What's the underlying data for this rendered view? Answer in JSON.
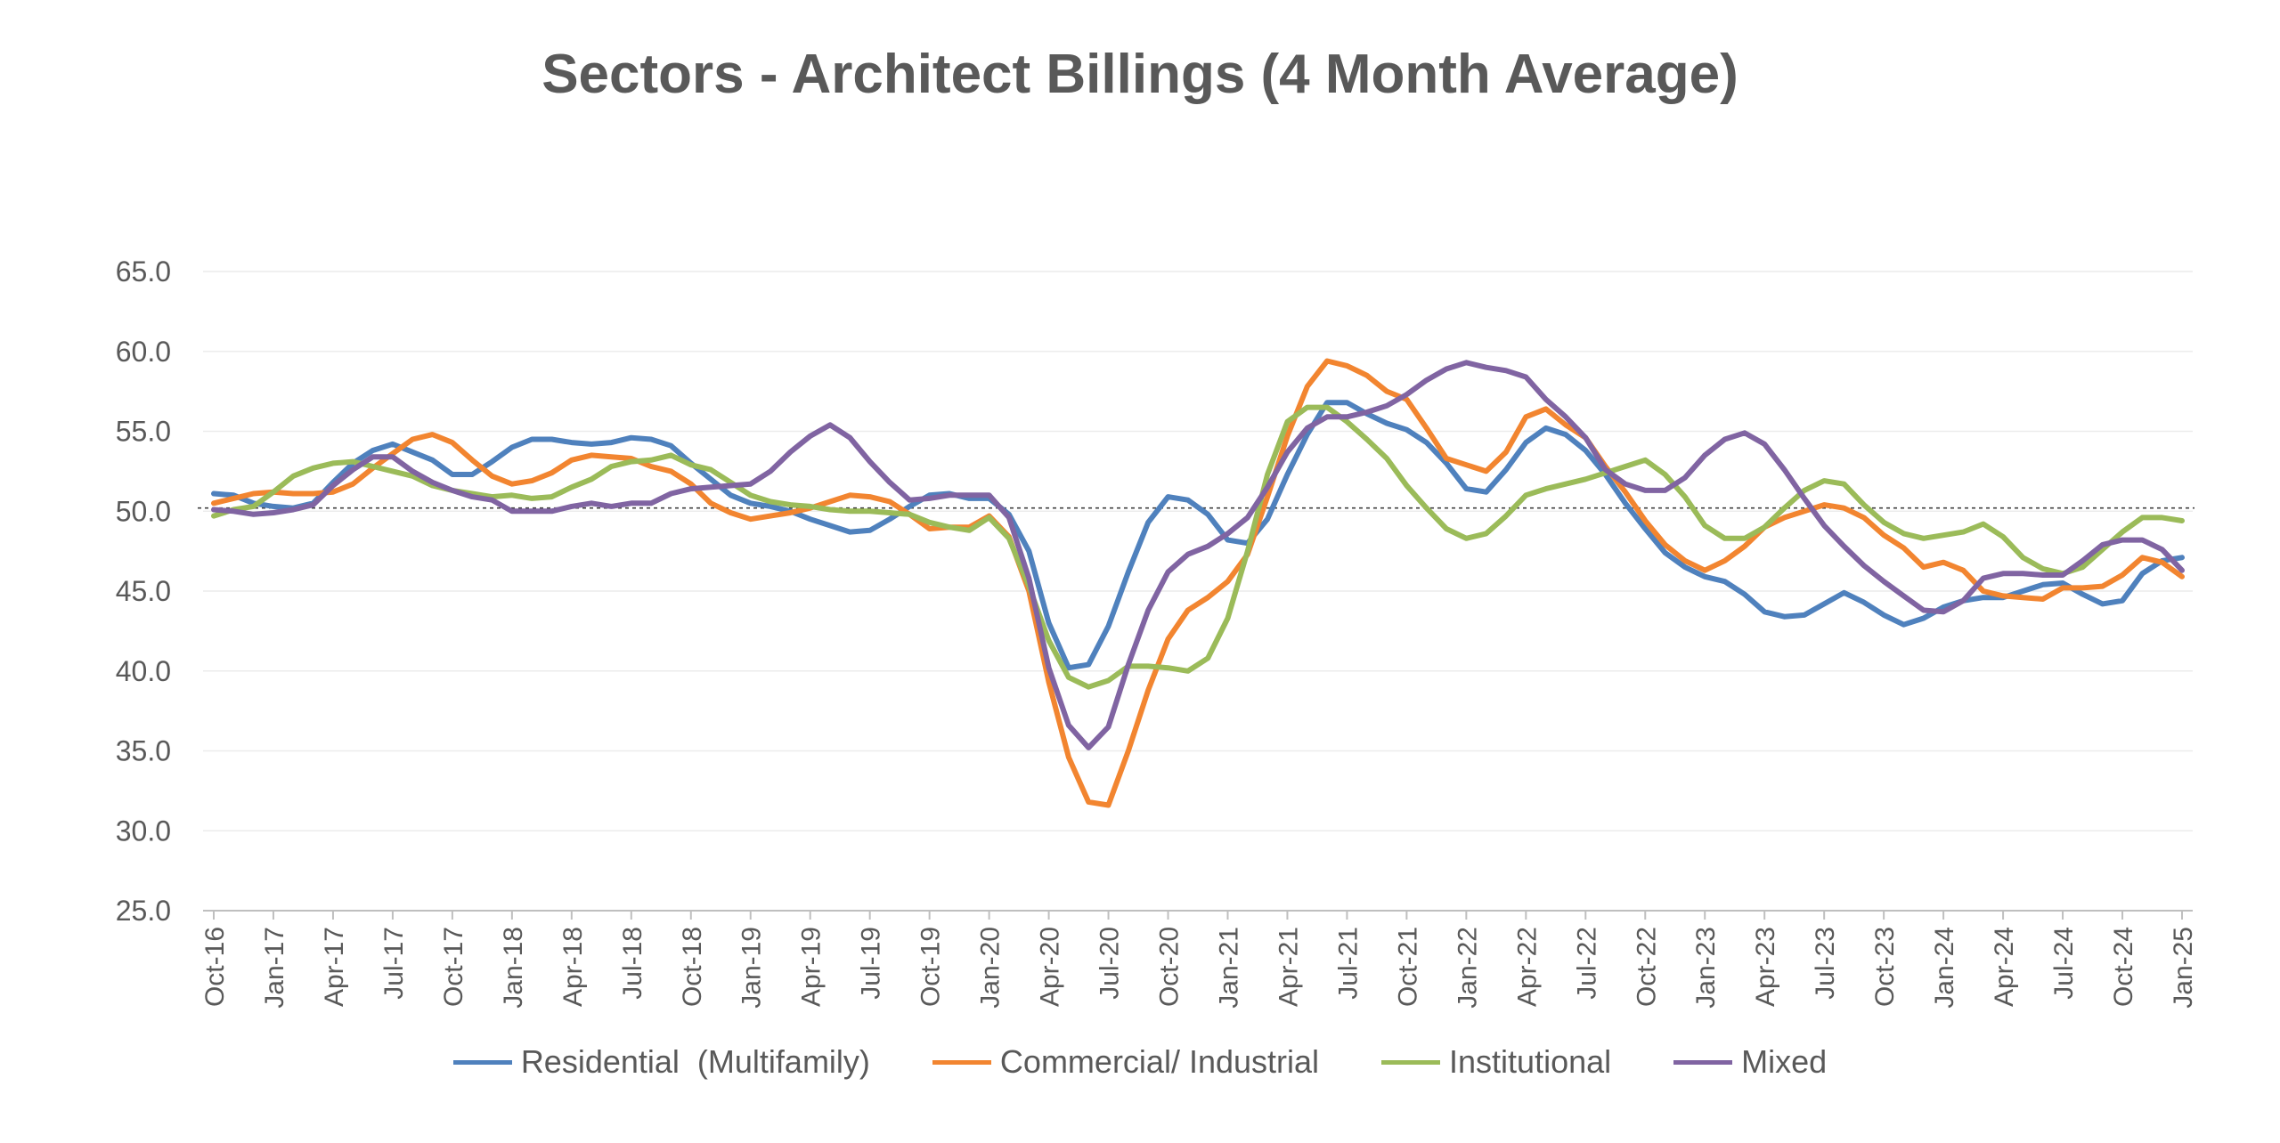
{
  "chart_data": {
    "type": "line",
    "title": "Sectors - Architect Billings (4 Month Average)",
    "xlabel": "",
    "ylabel": "",
    "ylim": [
      25,
      65
    ],
    "yticks": [
      "65.0",
      "60.0",
      "55.0",
      "50.0",
      "45.0",
      "40.0",
      "35.0",
      "30.0",
      "25.0"
    ],
    "reference_line": 50.2,
    "x_labels": [
      "Oct-16",
      "Jan-17",
      "Apr-17",
      "Jul-17",
      "Oct-17",
      "Jan-18",
      "Apr-18",
      "Jul-18",
      "Oct-18",
      "Jan-19",
      "Apr-19",
      "Jul-19",
      "Oct-19",
      "Jan-20",
      "Apr-20",
      "Jul-20",
      "Oct-20",
      "Jan-21",
      "Apr-21",
      "Jul-21",
      "Oct-21",
      "Jan-22",
      "Apr-22",
      "Jul-22",
      "Oct-22",
      "Jan-23",
      "Apr-23",
      "Jul-23",
      "Oct-23",
      "Jan-24",
      "Apr-24",
      "Jul-24",
      "Oct-24",
      "Jan-25"
    ],
    "series": [
      {
        "name": "Residential  (Multifamily)",
        "color": "#4f81bd",
        "values": [
          51.1,
          51.0,
          50.5,
          50.3,
          50.2,
          50.5,
          51.8,
          53.0,
          53.8,
          54.2,
          53.7,
          53.2,
          52.3,
          52.3,
          53.1,
          54.0,
          54.5,
          54.5,
          54.3,
          54.2,
          54.3,
          54.6,
          54.5,
          54.1,
          53.0,
          52.0,
          51.0,
          50.5,
          50.3,
          50.0,
          49.5,
          49.1,
          48.7,
          48.8,
          49.5,
          50.3,
          51.0,
          51.1,
          50.8,
          50.8,
          49.8,
          47.5,
          43.0,
          40.2,
          40.4,
          42.8,
          46.2,
          49.3,
          50.9,
          50.7,
          49.8,
          48.2,
          48.0,
          49.5,
          52.3,
          54.8,
          56.8,
          56.8,
          56.1,
          55.5,
          55.1,
          54.3,
          53.0,
          51.4,
          51.2,
          52.6,
          54.3,
          55.2,
          54.8,
          53.8,
          52.3,
          50.5,
          48.9,
          47.4,
          46.5,
          45.9,
          45.6,
          44.8,
          43.7,
          43.4,
          43.5,
          44.2,
          44.9,
          44.3,
          43.5,
          42.9,
          43.3,
          44.0,
          44.4,
          44.6,
          44.6,
          45.0,
          45.4,
          45.5,
          44.8,
          44.2,
          44.4,
          46.1,
          46.9,
          47.1
        ]
      },
      {
        "name": "Commercial/ Industrial",
        "color": "#f28530",
        "values": [
          50.5,
          50.8,
          51.1,
          51.2,
          51.1,
          51.1,
          51.2,
          51.7,
          52.7,
          53.6,
          54.5,
          54.8,
          54.3,
          53.2,
          52.2,
          51.7,
          51.9,
          52.4,
          53.2,
          53.5,
          53.4,
          53.3,
          52.8,
          52.5,
          51.7,
          50.5,
          49.9,
          49.5,
          49.7,
          49.9,
          50.2,
          50.6,
          51.0,
          50.9,
          50.6,
          49.8,
          48.9,
          49.0,
          49.0,
          49.7,
          48.4,
          45.0,
          39.3,
          34.6,
          31.8,
          31.6,
          35.0,
          38.8,
          42.0,
          43.8,
          44.6,
          45.6,
          47.3,
          50.9,
          54.7,
          57.8,
          59.4,
          59.1,
          58.5,
          57.5,
          57.0,
          55.2,
          53.3,
          52.9,
          52.5,
          53.7,
          55.9,
          56.4,
          55.4,
          54.6,
          52.8,
          51.2,
          49.4,
          47.9,
          46.9,
          46.3,
          46.9,
          47.8,
          49.0,
          49.6,
          50.0,
          50.4,
          50.2,
          49.6,
          48.5,
          47.7,
          46.5,
          46.8,
          46.3,
          45.0,
          44.7,
          44.6,
          44.5,
          45.2,
          45.2,
          45.3,
          46.0,
          47.1,
          46.8,
          45.9
        ]
      },
      {
        "name": "Institutional",
        "color": "#9bbb59",
        "values": [
          49.7,
          50.1,
          50.3,
          51.2,
          52.2,
          52.7,
          53.0,
          53.1,
          52.8,
          52.5,
          52.2,
          51.6,
          51.3,
          51.1,
          50.9,
          51.0,
          50.8,
          50.9,
          51.5,
          52.0,
          52.8,
          53.1,
          53.2,
          53.5,
          52.9,
          52.6,
          51.8,
          51.0,
          50.6,
          50.4,
          50.3,
          50.1,
          50.0,
          50.0,
          49.9,
          49.8,
          49.3,
          49.0,
          48.8,
          49.6,
          48.3,
          45.3,
          41.9,
          39.6,
          39.0,
          39.4,
          40.3,
          40.3,
          40.2,
          40.0,
          40.8,
          43.3,
          47.5,
          52.3,
          55.6,
          56.5,
          56.5,
          55.6,
          54.5,
          53.3,
          51.6,
          50.2,
          48.9,
          48.3,
          48.6,
          49.7,
          51.0,
          51.4,
          51.7,
          52.0,
          52.4,
          52.8,
          53.2,
          52.3,
          50.9,
          49.1,
          48.3,
          48.3,
          49.0,
          50.2,
          51.3,
          51.9,
          51.7,
          50.4,
          49.3,
          48.6,
          48.3,
          48.5,
          48.7,
          49.2,
          48.4,
          47.1,
          46.4,
          46.1,
          46.5,
          47.6,
          48.7,
          49.6,
          49.6,
          49.4
        ]
      },
      {
        "name": "Mixed",
        "color": "#8064a2",
        "values": [
          50.1,
          50.0,
          49.8,
          49.9,
          50.1,
          50.4,
          51.6,
          52.6,
          53.4,
          53.4,
          52.5,
          51.8,
          51.3,
          50.9,
          50.7,
          50.0,
          50.0,
          50.0,
          50.3,
          50.5,
          50.3,
          50.5,
          50.5,
          51.1,
          51.4,
          51.5,
          51.6,
          51.7,
          52.5,
          53.7,
          54.7,
          55.4,
          54.6,
          53.1,
          51.8,
          50.7,
          50.8,
          51.0,
          51.0,
          51.0,
          49.6,
          45.8,
          40.2,
          36.6,
          35.2,
          36.5,
          40.4,
          43.8,
          46.2,
          47.3,
          47.8,
          48.6,
          49.6,
          51.5,
          53.7,
          55.2,
          55.9,
          55.9,
          56.2,
          56.6,
          57.3,
          58.2,
          58.9,
          59.3,
          59.0,
          58.8,
          58.4,
          57.0,
          55.9,
          54.6,
          52.6,
          51.7,
          51.3,
          51.3,
          52.1,
          53.5,
          54.5,
          54.9,
          54.2,
          52.6,
          50.8,
          49.1,
          47.8,
          46.6,
          45.6,
          44.7,
          43.8,
          43.7,
          44.4,
          45.8,
          46.1,
          46.1,
          46.0,
          46.0,
          46.9,
          47.9,
          48.2,
          48.2,
          47.6,
          46.3
        ]
      }
    ]
  }
}
